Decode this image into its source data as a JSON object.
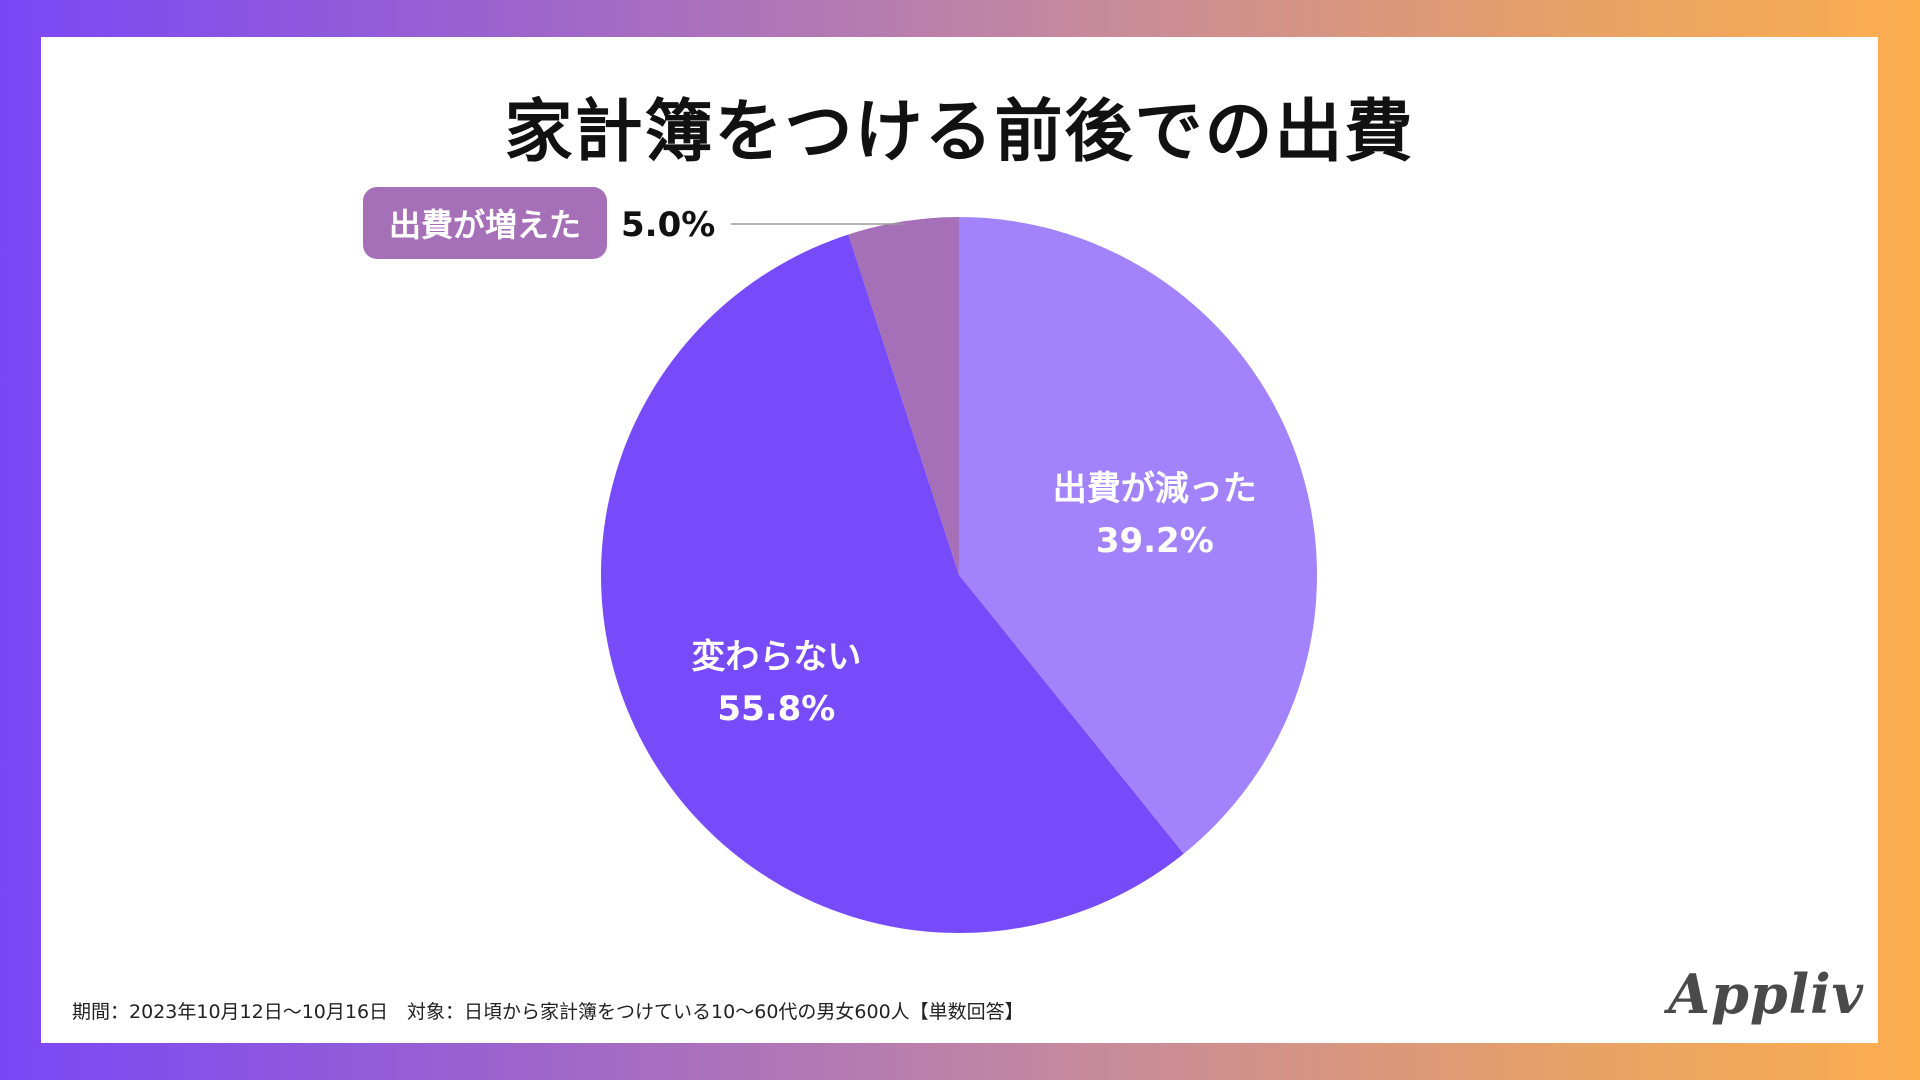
{
  "chart_data": {
    "type": "pie",
    "title": "家計簿をつける前後での出費",
    "unit": "%",
    "slices": [
      {
        "label": "出費が減った",
        "value": 39.2,
        "display": "39.2%",
        "color": "#a283fc",
        "text_color": "#ffffff"
      },
      {
        "label": "変わらない",
        "value": 55.8,
        "display": "55.8%",
        "color": "#774afa",
        "text_color": "#ffffff"
      },
      {
        "label": "出費が増えた",
        "value": 5.0,
        "display": "5.0%",
        "color": "#a670b8",
        "text_color": "#ffffff"
      }
    ],
    "start": "12 o'clock",
    "direction": "clockwise"
  },
  "footnote": "期間：2023年10月12日〜10月16日　対象：日頃から家計簿をつけている10〜60代の男女600人【単数回答】",
  "logo": "Appliv"
}
